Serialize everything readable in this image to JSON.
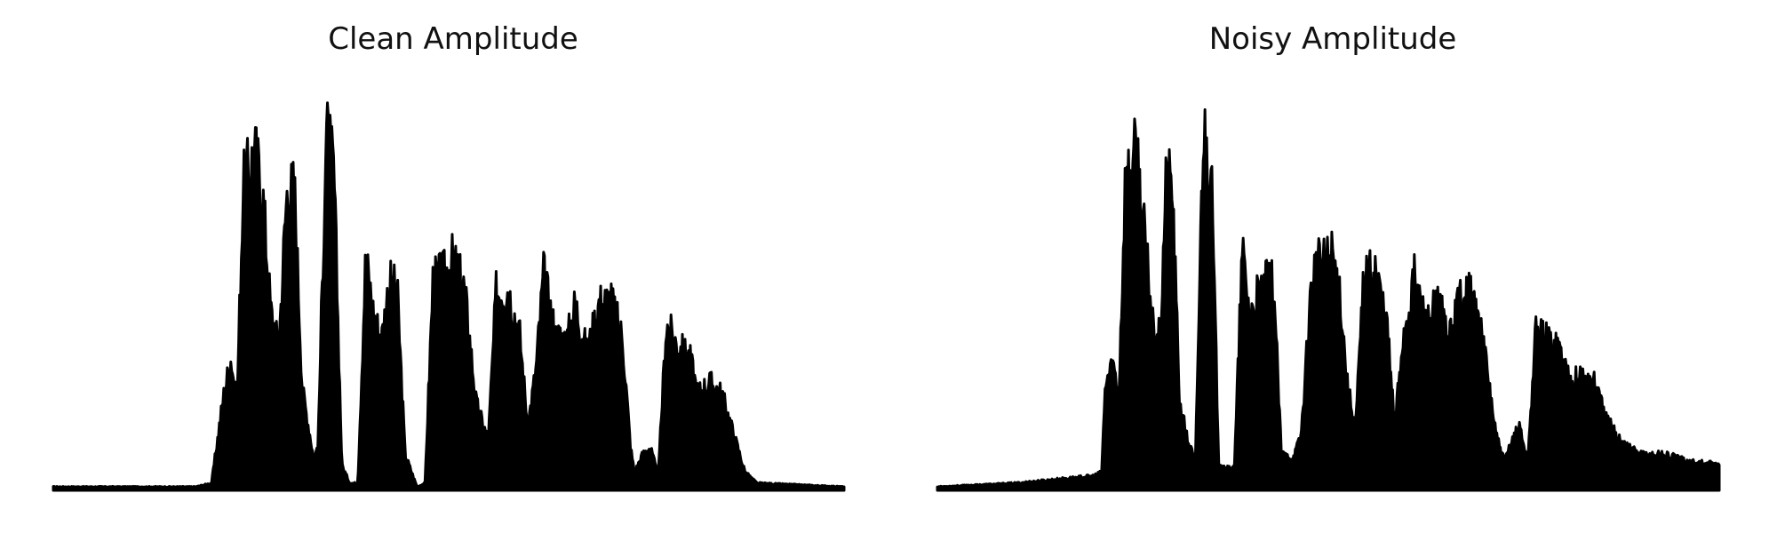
{
  "chart_data": [
    {
      "type": "area",
      "title": "Clean Amplitude",
      "color": "#000000",
      "ylim": [
        0,
        1.0
      ],
      "axes_visible": false,
      "grid": false,
      "envelope": [
        [
          0.0,
          0.01
        ],
        [
          0.18,
          0.01
        ],
        [
          0.2,
          0.02
        ],
        [
          0.215,
          0.26
        ],
        [
          0.225,
          0.37
        ],
        [
          0.232,
          0.23
        ],
        [
          0.24,
          0.84
        ],
        [
          0.255,
          0.94
        ],
        [
          0.265,
          0.82
        ],
        [
          0.275,
          0.5
        ],
        [
          0.285,
          0.4
        ],
        [
          0.295,
          0.82
        ],
        [
          0.305,
          0.84
        ],
        [
          0.315,
          0.28
        ],
        [
          0.325,
          0.15
        ],
        [
          0.33,
          0.08
        ],
        [
          0.335,
          0.14
        ],
        [
          0.345,
          1.0
        ],
        [
          0.355,
          0.88
        ],
        [
          0.365,
          0.07
        ],
        [
          0.375,
          0.02
        ],
        [
          0.385,
          0.02
        ],
        [
          0.395,
          0.65
        ],
        [
          0.405,
          0.49
        ],
        [
          0.415,
          0.42
        ],
        [
          0.425,
          0.58
        ],
        [
          0.435,
          0.55
        ],
        [
          0.445,
          0.1
        ],
        [
          0.46,
          0.01
        ],
        [
          0.47,
          0.02
        ],
        [
          0.48,
          0.58
        ],
        [
          0.495,
          0.6
        ],
        [
          0.505,
          0.64
        ],
        [
          0.52,
          0.56
        ],
        [
          0.535,
          0.24
        ],
        [
          0.55,
          0.14
        ],
        [
          0.56,
          0.55
        ],
        [
          0.575,
          0.56
        ],
        [
          0.59,
          0.43
        ],
        [
          0.6,
          0.18
        ],
        [
          0.61,
          0.33
        ],
        [
          0.62,
          0.6
        ],
        [
          0.635,
          0.43
        ],
        [
          0.65,
          0.42
        ],
        [
          0.66,
          0.52
        ],
        [
          0.675,
          0.38
        ],
        [
          0.69,
          0.52
        ],
        [
          0.705,
          0.53
        ],
        [
          0.72,
          0.42
        ],
        [
          0.73,
          0.12
        ],
        [
          0.735,
          0.05
        ],
        [
          0.745,
          0.1
        ],
        [
          0.755,
          0.12
        ],
        [
          0.765,
          0.04
        ],
        [
          0.775,
          0.46
        ],
        [
          0.79,
          0.4
        ],
        [
          0.805,
          0.37
        ],
        [
          0.815,
          0.27
        ],
        [
          0.83,
          0.3
        ],
        [
          0.845,
          0.27
        ],
        [
          0.86,
          0.16
        ],
        [
          0.875,
          0.05
        ],
        [
          0.89,
          0.02
        ],
        [
          1.0,
          0.01
        ]
      ]
    },
    {
      "type": "area",
      "title": "Noisy Amplitude",
      "color": "#000000",
      "ylim": [
        0,
        1.0
      ],
      "axes_visible": false,
      "grid": false,
      "envelope": [
        [
          0.0,
          0.01
        ],
        [
          0.1,
          0.02
        ],
        [
          0.2,
          0.04
        ],
        [
          0.21,
          0.05
        ],
        [
          0.215,
          0.3
        ],
        [
          0.225,
          0.35
        ],
        [
          0.232,
          0.26
        ],
        [
          0.24,
          0.84
        ],
        [
          0.255,
          0.94
        ],
        [
          0.265,
          0.7
        ],
        [
          0.275,
          0.48
        ],
        [
          0.285,
          0.42
        ],
        [
          0.292,
          0.84
        ],
        [
          0.3,
          0.86
        ],
        [
          0.31,
          0.24
        ],
        [
          0.32,
          0.14
        ],
        [
          0.33,
          0.08
        ],
        [
          0.34,
          1.0
        ],
        [
          0.35,
          0.9
        ],
        [
          0.36,
          0.08
        ],
        [
          0.37,
          0.06
        ],
        [
          0.38,
          0.07
        ],
        [
          0.39,
          0.66
        ],
        [
          0.4,
          0.48
        ],
        [
          0.41,
          0.54
        ],
        [
          0.42,
          0.57
        ],
        [
          0.43,
          0.58
        ],
        [
          0.44,
          0.1
        ],
        [
          0.455,
          0.09
        ],
        [
          0.465,
          0.15
        ],
        [
          0.48,
          0.62
        ],
        [
          0.495,
          0.63
        ],
        [
          0.505,
          0.66
        ],
        [
          0.515,
          0.55
        ],
        [
          0.525,
          0.28
        ],
        [
          0.535,
          0.18
        ],
        [
          0.545,
          0.58
        ],
        [
          0.56,
          0.62
        ],
        [
          0.575,
          0.46
        ],
        [
          0.585,
          0.18
        ],
        [
          0.595,
          0.42
        ],
        [
          0.61,
          0.59
        ],
        [
          0.625,
          0.46
        ],
        [
          0.64,
          0.52
        ],
        [
          0.655,
          0.42
        ],
        [
          0.67,
          0.56
        ],
        [
          0.685,
          0.54
        ],
        [
          0.7,
          0.38
        ],
        [
          0.715,
          0.15
        ],
        [
          0.725,
          0.08
        ],
        [
          0.735,
          0.14
        ],
        [
          0.745,
          0.18
        ],
        [
          0.755,
          0.08
        ],
        [
          0.765,
          0.44
        ],
        [
          0.78,
          0.42
        ],
        [
          0.795,
          0.4
        ],
        [
          0.81,
          0.3
        ],
        [
          0.825,
          0.32
        ],
        [
          0.84,
          0.3
        ],
        [
          0.855,
          0.2
        ],
        [
          0.87,
          0.15
        ],
        [
          0.885,
          0.12
        ],
        [
          0.9,
          0.1
        ],
        [
          0.93,
          0.1
        ],
        [
          0.96,
          0.08
        ],
        [
          1.0,
          0.07
        ]
      ]
    }
  ]
}
